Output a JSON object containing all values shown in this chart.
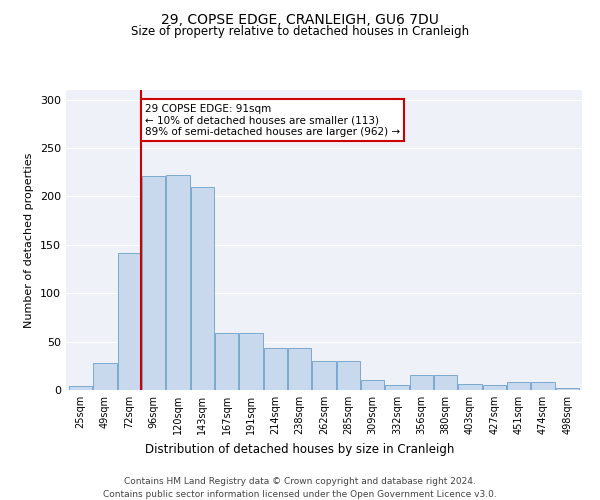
{
  "title1": "29, COPSE EDGE, CRANLEIGH, GU6 7DU",
  "title2": "Size of property relative to detached houses in Cranleigh",
  "xlabel": "Distribution of detached houses by size in Cranleigh",
  "ylabel": "Number of detached properties",
  "footer1": "Contains HM Land Registry data © Crown copyright and database right 2024.",
  "footer2": "Contains public sector information licensed under the Open Government Licence v3.0.",
  "annotation_title": "29 COPSE EDGE: 91sqm",
  "annotation_line2": "← 10% of detached houses are smaller (113)",
  "annotation_line3": "89% of semi-detached houses are larger (962) →",
  "categories": [
    "25sqm",
    "49sqm",
    "72sqm",
    "96sqm",
    "120sqm",
    "143sqm",
    "167sqm",
    "191sqm",
    "214sqm",
    "238sqm",
    "262sqm",
    "285sqm",
    "309sqm",
    "332sqm",
    "356sqm",
    "380sqm",
    "403sqm",
    "427sqm",
    "451sqm",
    "474sqm",
    "498sqm"
  ],
  "values": [
    4,
    28,
    142,
    221,
    222,
    210,
    59,
    59,
    43,
    43,
    30,
    30,
    10,
    5,
    16,
    16,
    6,
    5,
    8,
    8,
    2
  ],
  "bar_color": "#c9d9ed",
  "bar_edge_color": "#7aaacf",
  "vline_color": "#cc0000",
  "vline_x": 2.5,
  "annotation_box_color": "#cc0000",
  "bg_color": "#eef2f8",
  "ylim": [
    0,
    310
  ],
  "yticks": [
    0,
    50,
    100,
    150,
    200,
    250,
    300
  ]
}
